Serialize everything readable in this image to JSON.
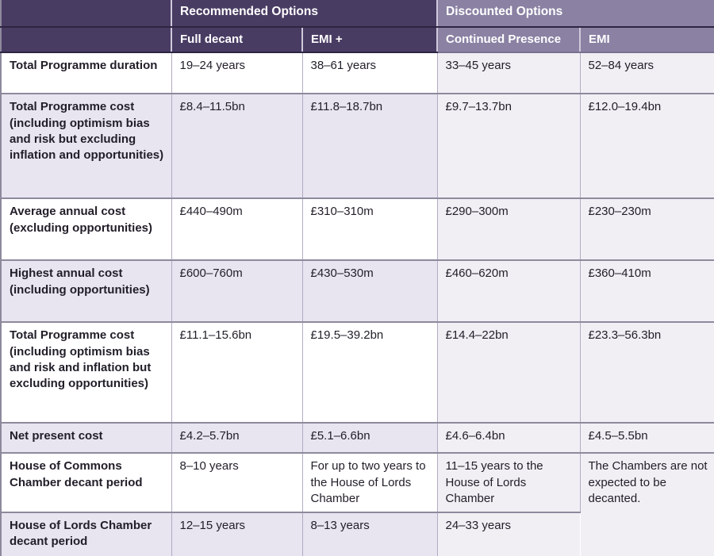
{
  "table": {
    "groups": [
      {
        "label": "Recommended Options",
        "columns": [
          "Full decant",
          "EMI +"
        ]
      },
      {
        "label": "Discounted Options",
        "columns": [
          "Continued Presence",
          "EMI"
        ]
      }
    ],
    "rows": [
      {
        "label": "Total Programme duration",
        "values": [
          "19–24 years",
          "38–61 years",
          "33–45 years",
          "52–84 years"
        ]
      },
      {
        "label": "Total Programme cost (including optimism bias and risk but excluding inflation and opportunities)",
        "values": [
          "£8.4–11.5bn",
          "£11.8–18.7bn",
          "£9.7–13.7bn",
          "£12.0–19.4bn"
        ]
      },
      {
        "label": "Average annual cost (excluding opportunities)",
        "values": [
          "£440–490m",
          "£310–310m",
          "£290–300m",
          "£230–230m"
        ]
      },
      {
        "label": "Highest annual cost (including opportunities)",
        "values": [
          "£600–760m",
          "£430–530m",
          "£460–620m",
          "£360–410m"
        ]
      },
      {
        "label": "Total Programme cost (including optimism bias and risk and inflation but excluding opportunities)",
        "values": [
          "£11.1–15.6bn",
          "£19.5–39.2bn",
          "£14.4–22bn",
          "£23.3–56.3bn"
        ]
      },
      {
        "label": "Net present cost",
        "values": [
          "£4.2–5.7bn",
          "£5.1–6.6bn",
          "£4.6–6.4bn",
          "£4.5–5.5bn"
        ]
      },
      {
        "label": "House of Commons Chamber decant period",
        "values": [
          "8–10 years",
          "For up to two years to the House of Lords Chamber",
          "11–15 years to the House of Lords Chamber",
          "The Chambers are not expected to be decanted."
        ]
      },
      {
        "label": "House of Lords Chamber decant period",
        "values": [
          "12–15 years",
          "8–13 years",
          "24–33 years"
        ]
      }
    ]
  },
  "colors": {
    "header_dark": "#493c63",
    "header_light": "#8a81a3",
    "row_lavender": "#e8e4f0",
    "discounted_tint": "#f1eff4",
    "row_white": "#ffffff",
    "border_vertical": "#b2abc4",
    "border_horizontal": "#8e8a9c",
    "header_divider": "#2d2542",
    "header_divider_light": "#77708f",
    "text": "#221e29",
    "header_text": "#ffffff"
  }
}
